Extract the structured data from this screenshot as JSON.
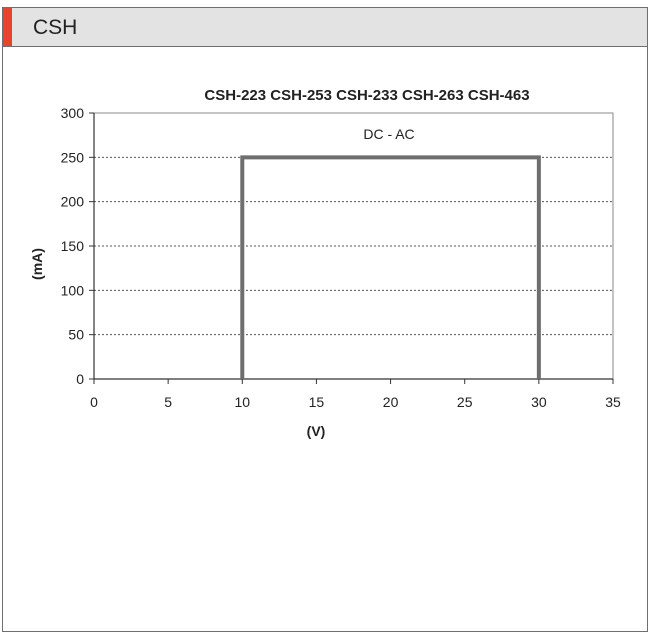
{
  "header": {
    "title": "CSH"
  },
  "colors": {
    "accent": "#e8432f",
    "series": "#6e6e6e",
    "grid": "#555555"
  },
  "chart_data": {
    "type": "line",
    "title": "CSH-223 CSH-253 CSH-233 CSH-263 CSH-463",
    "xlabel": "(V)",
    "ylabel": "(mA)",
    "xlim": [
      0,
      35
    ],
    "ylim": [
      0,
      300
    ],
    "xticks": [
      0,
      5,
      10,
      15,
      20,
      25,
      30,
      35
    ],
    "yticks": [
      0,
      50,
      100,
      150,
      200,
      250,
      300
    ],
    "grid": "horizontal dotted",
    "annotation": "DC - AC",
    "series": [
      {
        "x": [
          10,
          10,
          30,
          30
        ],
        "y": [
          0,
          250,
          250,
          0
        ]
      }
    ]
  }
}
